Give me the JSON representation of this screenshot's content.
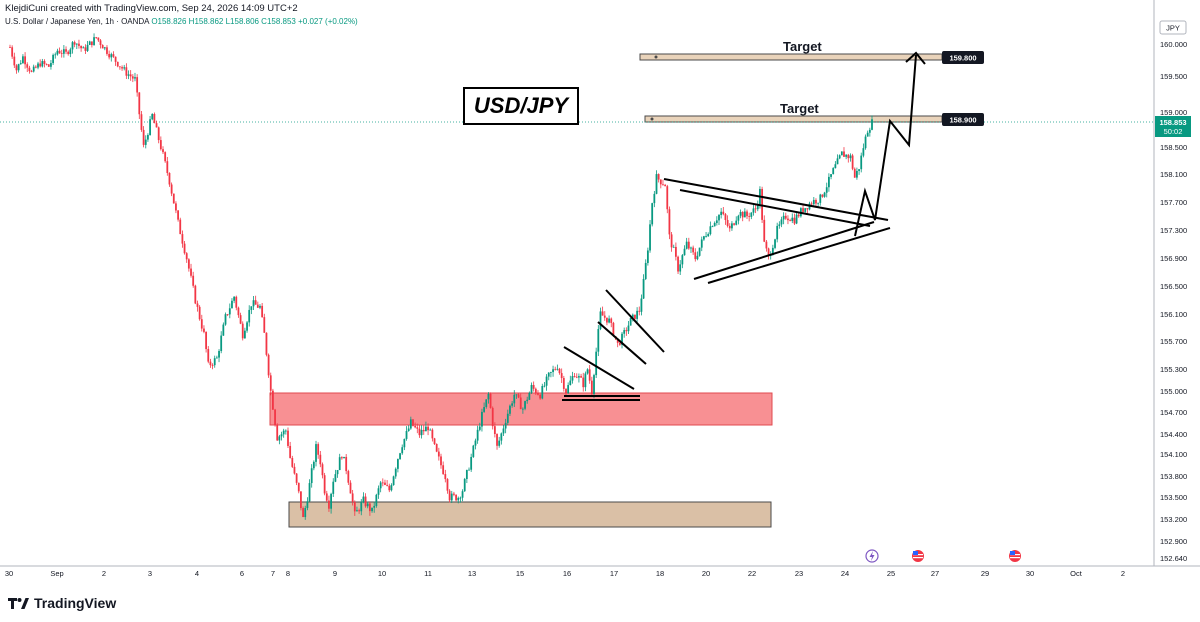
{
  "header": {
    "author": "KlejdiCuni created with TradingView.com, Sep 24, 2026 14:09 UTC+2",
    "symbol": "U.S. Dollar / Japanese Yen, 1h · OANDA",
    "ohlc": "O158.826 H158.862 L158.806 C158.853",
    "change": "+0.027 (+0.02%)"
  },
  "title_label": "USD/JPY",
  "footer": {
    "brand": "TradingView"
  },
  "colors": {
    "up": "#089981",
    "down": "#f23645",
    "supply_zone": "#f77c80",
    "demand_zone": "#d4b596"
  },
  "chart_data": {
    "type": "candlestick",
    "currency_label": "JPY",
    "y_axis": {
      "ticks": [
        "160.000",
        "159.500",
        "159.000",
        "158.500",
        "158.100",
        "157.700",
        "157.300",
        "156.900",
        "156.500",
        "156.100",
        "155.700",
        "155.300",
        "155.000",
        "154.700",
        "154.400",
        "154.100",
        "153.800",
        "153.500",
        "153.200",
        "152.900",
        "152.640"
      ],
      "range": [
        152.55,
        160.1
      ]
    },
    "x_axis": {
      "ticks": [
        "30",
        "Sep",
        "2",
        "3",
        "4",
        "6",
        "7",
        "8",
        "9",
        "10",
        "11",
        "13",
        "15",
        "16",
        "17",
        "18",
        "20",
        "22",
        "23",
        "24",
        "25",
        "27",
        "29",
        "30",
        "Oct",
        "2"
      ]
    },
    "current_price": {
      "value": "158.853",
      "countdown": "50:02"
    },
    "targets": [
      {
        "label": "Target",
        "price": "159.800"
      },
      {
        "label": "Target",
        "price": "158.900"
      }
    ],
    "zones": [
      {
        "name": "supply-resistance-zone",
        "low": 154.5,
        "high": 154.97
      },
      {
        "name": "demand-support-zone",
        "low": 153.08,
        "high": 153.45
      }
    ],
    "price_path": [
      [
        159.95,
        0
      ],
      [
        159.6,
        3
      ],
      [
        159.8,
        6
      ],
      [
        159.55,
        10
      ],
      [
        159.7,
        14
      ],
      [
        159.65,
        18
      ],
      [
        159.9,
        22
      ],
      [
        159.85,
        26
      ],
      [
        160.05,
        30
      ],
      [
        159.9,
        34
      ],
      [
        160.1,
        40
      ],
      [
        159.85,
        46
      ],
      [
        159.7,
        50
      ],
      [
        159.55,
        54
      ],
      [
        159.45,
        58
      ],
      [
        158.5,
        62
      ],
      [
        158.95,
        66
      ],
      [
        158.5,
        70
      ],
      [
        158.0,
        74
      ],
      [
        157.4,
        78
      ],
      [
        156.9,
        82
      ],
      [
        156.3,
        86
      ],
      [
        155.8,
        90
      ],
      [
        155.35,
        92
      ],
      [
        155.45,
        96
      ],
      [
        156.05,
        100
      ],
      [
        156.35,
        104
      ],
      [
        155.8,
        108
      ],
      [
        156.25,
        112
      ],
      [
        156.2,
        116
      ],
      [
        155.8,
        118
      ],
      [
        155.0,
        121
      ],
      [
        154.35,
        124
      ],
      [
        154.45,
        128
      ],
      [
        154.05,
        130
      ],
      [
        153.55,
        134
      ],
      [
        153.2,
        136
      ],
      [
        153.5,
        138
      ],
      [
        154.2,
        142
      ],
      [
        154.0,
        144
      ],
      [
        153.6,
        146
      ],
      [
        153.4,
        148
      ],
      [
        153.75,
        150
      ],
      [
        154.1,
        154
      ],
      [
        153.9,
        156
      ],
      [
        153.6,
        158
      ],
      [
        153.25,
        160
      ],
      [
        153.45,
        164
      ],
      [
        153.3,
        168
      ],
      [
        153.7,
        172
      ],
      [
        153.6,
        176
      ],
      [
        154.05,
        180
      ],
      [
        154.25,
        182
      ],
      [
        154.55,
        186
      ],
      [
        154.4,
        190
      ],
      [
        154.5,
        194
      ],
      [
        154.1,
        198
      ],
      [
        153.8,
        202
      ],
      [
        153.5,
        204
      ],
      [
        153.5,
        208
      ],
      [
        153.6,
        210
      ],
      [
        154.05,
        214
      ],
      [
        154.55,
        218
      ],
      [
        154.95,
        222
      ],
      [
        154.55,
        224
      ],
      [
        154.2,
        226
      ],
      [
        154.6,
        230
      ],
      [
        154.95,
        234
      ],
      [
        154.75,
        238
      ],
      [
        155.05,
        242
      ],
      [
        154.95,
        246
      ],
      [
        155.2,
        250
      ],
      [
        155.35,
        254
      ],
      [
        155.0,
        258
      ],
      [
        155.25,
        262
      ],
      [
        155.1,
        266
      ],
      [
        155.3,
        268
      ],
      [
        155.0,
        270
      ],
      [
        155.55,
        272
      ],
      [
        156.1,
        274
      ],
      [
        156.0,
        278
      ],
      [
        155.65,
        282
      ],
      [
        155.75,
        284
      ],
      [
        156.0,
        288
      ],
      [
        156.15,
        292
      ],
      [
        156.55,
        294
      ],
      [
        157.05,
        296
      ],
      [
        157.7,
        298
      ],
      [
        158.05,
        300
      ],
      [
        157.95,
        304
      ],
      [
        157.2,
        306
      ],
      [
        157.0,
        308
      ],
      [
        156.75,
        310
      ],
      [
        157.1,
        314
      ],
      [
        156.9,
        318
      ],
      [
        157.2,
        322
      ],
      [
        157.4,
        326
      ],
      [
        157.55,
        330
      ],
      [
        157.3,
        334
      ],
      [
        157.55,
        338
      ],
      [
        157.5,
        342
      ],
      [
        157.6,
        346
      ],
      [
        157.85,
        348
      ],
      [
        157.1,
        350
      ],
      [
        156.9,
        352
      ],
      [
        157.3,
        356
      ],
      [
        157.5,
        360
      ],
      [
        157.45,
        364
      ],
      [
        157.6,
        368
      ],
      [
        157.7,
        372
      ],
      [
        157.75,
        376
      ],
      [
        158.0,
        380
      ],
      [
        158.15,
        382
      ],
      [
        158.4,
        386
      ],
      [
        158.35,
        390
      ],
      [
        158.05,
        392
      ],
      [
        158.2,
        394
      ],
      [
        158.5,
        396
      ],
      [
        158.75,
        398
      ],
      [
        158.853,
        400
      ]
    ]
  }
}
